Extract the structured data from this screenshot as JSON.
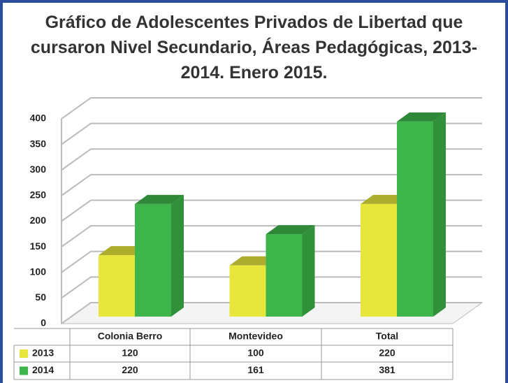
{
  "chart_data": {
    "type": "bar3d",
    "title": "Gráfico de Adolescentes Privados de Libertad que cursaron Nivel Secundario, Áreas Pedagógicas, 2013-2014. Enero 2015.",
    "categories": [
      "Colonia Berro",
      "Montevideo",
      "Total"
    ],
    "series": [
      {
        "name": "2013",
        "color": "#e6e63c",
        "values": [
          120,
          100,
          220
        ]
      },
      {
        "name": "2014",
        "color": "#3db54a",
        "values": [
          220,
          161,
          381
        ]
      }
    ],
    "ylim": [
      0,
      400
    ],
    "yticks": [
      0,
      50,
      100,
      150,
      200,
      250,
      300,
      350,
      400
    ],
    "grid": true
  }
}
